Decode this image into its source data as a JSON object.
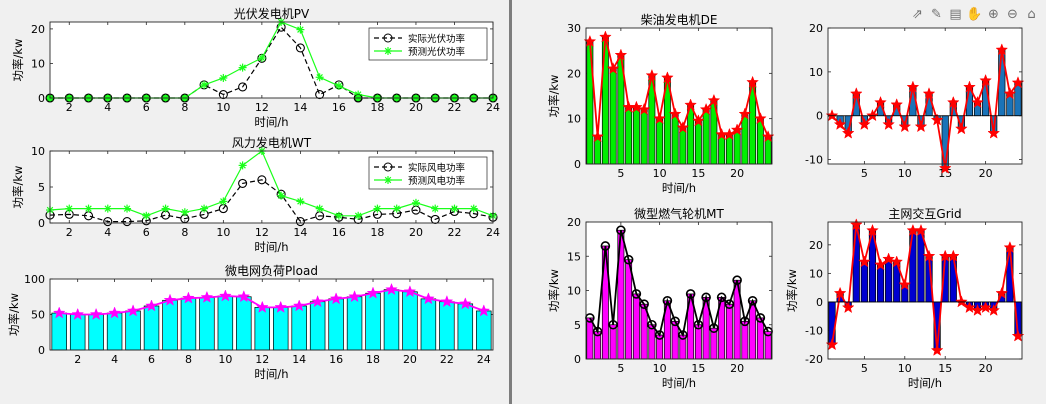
{
  "toolbar": [
    {
      "name": "export-icon",
      "glyph": "⇗"
    },
    {
      "name": "brush-icon",
      "glyph": "✎"
    },
    {
      "name": "datatip-icon",
      "glyph": "▤"
    },
    {
      "name": "pan-icon",
      "glyph": "✋"
    },
    {
      "name": "zoom-in-icon",
      "glyph": "⊕"
    },
    {
      "name": "zoom-out-icon",
      "glyph": "⊖"
    },
    {
      "name": "home-icon",
      "glyph": "⌂"
    }
  ],
  "chart_data": [
    {
      "id": "pv",
      "type": "line",
      "title": "光伏发电机PV",
      "xlabel": "时间/h",
      "ylabel": "功率/kw",
      "xlim": [
        1,
        24
      ],
      "ylim": [
        0,
        22
      ],
      "xticks": [
        2,
        4,
        6,
        8,
        10,
        12,
        14,
        16,
        18,
        20,
        22,
        24
      ],
      "yticks": [
        0,
        10,
        20
      ],
      "grid": false,
      "legend_position": "top-right",
      "x": [
        1,
        2,
        3,
        4,
        5,
        6,
        7,
        8,
        9,
        10,
        11,
        12,
        13,
        14,
        15,
        16,
        17,
        18,
        19,
        20,
        21,
        22,
        23,
        24
      ],
      "series": [
        {
          "name": "实际光伏功率",
          "color": "#000000",
          "marker": "circle",
          "style": "dashed",
          "values": [
            0,
            0,
            0,
            0,
            0,
            0,
            0,
            0,
            3.8,
            1.0,
            3.2,
            11.5,
            20.5,
            14.5,
            1.0,
            3.8,
            0,
            0,
            0,
            0,
            0,
            0,
            0,
            0
          ]
        },
        {
          "name": "预测光伏功率",
          "color": "#1aff1a",
          "marker": "star",
          "style": "solid",
          "values": [
            0,
            0,
            0,
            0,
            0,
            0,
            0,
            0,
            3.8,
            5.8,
            8.8,
            11.6,
            22.0,
            19.8,
            6.0,
            3.5,
            1.0,
            0,
            0,
            0,
            0,
            0,
            0,
            0
          ]
        }
      ]
    },
    {
      "id": "wt",
      "type": "line",
      "title": "风力发电机WT",
      "xlabel": "时间/h",
      "ylabel": "功率/kw",
      "xlim": [
        1,
        24
      ],
      "ylim": [
        0,
        10
      ],
      "xticks": [
        2,
        4,
        6,
        8,
        10,
        12,
        14,
        16,
        18,
        20,
        22,
        24
      ],
      "yticks": [
        0,
        5,
        10
      ],
      "grid": false,
      "legend_position": "top-right",
      "x": [
        1,
        2,
        3,
        4,
        5,
        6,
        7,
        8,
        9,
        10,
        11,
        12,
        13,
        14,
        15,
        16,
        17,
        18,
        19,
        20,
        21,
        22,
        23,
        24
      ],
      "series": [
        {
          "name": "实际风电功率",
          "color": "#000000",
          "marker": "circle",
          "style": "dashed",
          "values": [
            1.1,
            1.2,
            1.0,
            0.2,
            0.2,
            0.3,
            1.1,
            0.6,
            1.2,
            2.0,
            5.5,
            6.0,
            4.0,
            0.2,
            1.0,
            0.8,
            0.5,
            1.2,
            1.3,
            1.8,
            0.5,
            1.6,
            1.3,
            0.8
          ]
        },
        {
          "name": "预测风电功率",
          "color": "#1aff1a",
          "marker": "star",
          "style": "solid",
          "values": [
            1.8,
            2.0,
            2.0,
            2.0,
            2.0,
            1.0,
            2.0,
            1.5,
            2.0,
            3.0,
            8.0,
            10.0,
            3.8,
            3.0,
            2.0,
            1.0,
            1.0,
            2.0,
            2.0,
            2.8,
            2.0,
            2.0,
            2.0,
            1.0
          ]
        }
      ]
    },
    {
      "id": "load",
      "type": "bar",
      "title": "微电网负荷Pload",
      "xlabel": "时间/h",
      "ylabel": "功率/kw",
      "xlim": [
        0.5,
        24.5
      ],
      "ylim": [
        0,
        100
      ],
      "xticks": [
        2,
        4,
        6,
        8,
        10,
        12,
        14,
        16,
        18,
        20,
        22,
        24
      ],
      "yticks": [
        0,
        50,
        100
      ],
      "bar_color": "#00ffff",
      "line_color": "#ff00ff",
      "marker": "star",
      "x": [
        1,
        2,
        3,
        4,
        5,
        6,
        7,
        8,
        9,
        10,
        11,
        12,
        13,
        14,
        15,
        16,
        17,
        18,
        19,
        20,
        21,
        22,
        23,
        24
      ],
      "values": [
        52,
        50,
        50,
        52,
        55,
        62,
        70,
        73,
        74,
        76,
        75,
        60,
        60,
        62,
        68,
        72,
        75,
        80,
        85,
        82,
        72,
        68,
        65,
        55
      ]
    },
    {
      "id": "de",
      "type": "bar",
      "title": "柴油发电机DE",
      "xlabel": "时间/h",
      "ylabel": "功率/kw",
      "xlim": [
        0.5,
        24.5
      ],
      "ylim": [
        0,
        30
      ],
      "xticks": [
        5,
        10,
        15,
        20
      ],
      "yticks": [
        0,
        10,
        20,
        30
      ],
      "bar_color": "#00ee00",
      "line_color": "#ff0000",
      "marker": "star",
      "x": [
        1,
        2,
        3,
        4,
        5,
        6,
        7,
        8,
        9,
        10,
        11,
        12,
        13,
        14,
        15,
        16,
        17,
        18,
        19,
        20,
        21,
        22,
        23,
        24
      ],
      "values": [
        27.0,
        6.0,
        28.0,
        21.0,
        24.0,
        12.5,
        12.5,
        12.0,
        19.5,
        10.0,
        19.0,
        11.0,
        8.0,
        13.0,
        9.5,
        12.0,
        14.0,
        6.5,
        6.5,
        7.5,
        11.0,
        18.0,
        10.0,
        6.0
      ]
    },
    {
      "id": "bat",
      "type": "bar",
      "title": "",
      "xlabel": "",
      "ylabel": "",
      "xlim": [
        0.5,
        24.5
      ],
      "ylim": [
        -11,
        20
      ],
      "xticks": [
        5,
        10,
        15,
        20
      ],
      "yticks": [
        -10,
        0,
        10,
        20
      ],
      "bar_color": "#1a73b8",
      "line_color": "#ff0000",
      "marker": "star",
      "x": [
        1,
        2,
        3,
        4,
        5,
        6,
        7,
        8,
        9,
        10,
        11,
        12,
        13,
        14,
        15,
        16,
        17,
        18,
        19,
        20,
        21,
        22,
        23,
        24
      ],
      "values": [
        0,
        -2.0,
        -4.0,
        5.0,
        -2.0,
        0,
        3.0,
        -2.0,
        2.5,
        -2.5,
        6.5,
        -2.5,
        5.0,
        -1.0,
        -12.0,
        3.0,
        -3.0,
        6.5,
        3.0,
        8.0,
        -4.0,
        15.0,
        5.0,
        7.5
      ]
    },
    {
      "id": "mt",
      "type": "bar",
      "title": "微型燃气轮机MT",
      "xlabel": "时间/h",
      "ylabel": "功率/kw",
      "xlim": [
        0.5,
        24.5
      ],
      "ylim": [
        0,
        20
      ],
      "xticks": [
        5,
        10,
        15,
        20
      ],
      "yticks": [
        0,
        5,
        10,
        15,
        20
      ],
      "bar_color": "#ff00ff",
      "line_color": "#000000",
      "marker": "circle",
      "x": [
        1,
        2,
        3,
        4,
        5,
        6,
        7,
        8,
        9,
        10,
        11,
        12,
        13,
        14,
        15,
        16,
        17,
        18,
        19,
        20,
        21,
        22,
        23,
        24
      ],
      "values": [
        6.0,
        4.0,
        16.5,
        5.0,
        18.8,
        14.5,
        9.5,
        8.0,
        5.0,
        3.5,
        8.5,
        5.5,
        3.5,
        9.5,
        5.0,
        9.0,
        4.5,
        9.0,
        8.0,
        11.5,
        5.5,
        8.5,
        6.0,
        4.0
      ]
    },
    {
      "id": "grid",
      "type": "bar",
      "title": "主网交互Grid",
      "xlabel": "时间/h",
      "ylabel": "功率/kw",
      "xlim": [
        0.5,
        24.5
      ],
      "ylim": [
        -20,
        28
      ],
      "xticks": [
        5,
        10,
        15,
        20
      ],
      "yticks": [
        -20,
        -10,
        0,
        10,
        20
      ],
      "bar_color": "#0000d0",
      "line_color": "#ff0000",
      "marker": "star",
      "x": [
        1,
        2,
        3,
        4,
        5,
        6,
        7,
        8,
        9,
        10,
        11,
        12,
        13,
        14,
        15,
        16,
        17,
        18,
        19,
        20,
        21,
        22,
        23,
        24
      ],
      "values": [
        -15.0,
        3.0,
        -2.0,
        27.0,
        14.0,
        25.0,
        13.0,
        15.0,
        14.0,
        6.0,
        25.0,
        25.0,
        16.0,
        -17.0,
        16.0,
        16.0,
        0,
        -2.0,
        -3.0,
        -2.0,
        -3.0,
        3.0,
        19.0,
        -12.0
      ]
    }
  ]
}
